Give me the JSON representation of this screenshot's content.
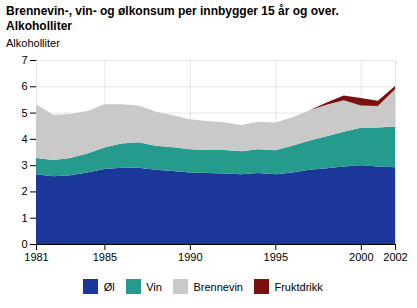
{
  "chart_data": {
    "type": "area",
    "title": "Brennevin-, vin- og ølkonsum per innbygger 15 år og over.",
    "subtitle": "Alkoholliter",
    "ylabel": "Alkoholliter",
    "x": [
      1981,
      1982,
      1983,
      1984,
      1985,
      1986,
      1987,
      1988,
      1989,
      1990,
      1991,
      1992,
      1993,
      1994,
      1995,
      1996,
      1997,
      1998,
      1999,
      2000,
      2001,
      2002
    ],
    "series": [
      {
        "name": "Øl",
        "color": "#1a3799",
        "values": [
          2.65,
          2.58,
          2.62,
          2.72,
          2.85,
          2.9,
          2.9,
          2.82,
          2.78,
          2.72,
          2.7,
          2.68,
          2.65,
          2.7,
          2.65,
          2.72,
          2.82,
          2.88,
          2.95,
          3.0,
          2.95,
          2.92
        ]
      },
      {
        "name": "Vin",
        "color": "#259b8e",
        "values": [
          0.62,
          0.62,
          0.65,
          0.72,
          0.82,
          0.92,
          0.97,
          0.92,
          0.9,
          0.88,
          0.88,
          0.9,
          0.88,
          0.9,
          0.92,
          1.02,
          1.12,
          1.22,
          1.32,
          1.42,
          1.48,
          1.55
        ]
      },
      {
        "name": "Brennevin",
        "color": "#c9c9c9",
        "values": [
          2.05,
          1.72,
          1.68,
          1.62,
          1.65,
          1.5,
          1.4,
          1.3,
          1.22,
          1.15,
          1.1,
          1.05,
          1.0,
          1.05,
          1.05,
          1.08,
          1.15,
          1.2,
          1.2,
          0.85,
          0.82,
          1.42
        ]
      },
      {
        "name": "Fruktdrikk",
        "color": "#7a1010",
        "values": [
          0.0,
          0.0,
          0.0,
          0.0,
          0.0,
          0.0,
          0.0,
          0.0,
          0.0,
          0.0,
          0.0,
          0.0,
          0.0,
          0.0,
          0.0,
          0.0,
          0.0,
          0.08,
          0.18,
          0.28,
          0.2,
          0.12
        ]
      }
    ],
    "xlim": [
      1981,
      2002
    ],
    "xticks": [
      1981,
      1985,
      1990,
      1995,
      2000,
      2002
    ],
    "ylim": [
      0,
      7
    ],
    "yticks": [
      0,
      1,
      2,
      3,
      4,
      5,
      6,
      7
    ],
    "stacked": true,
    "grid": true,
    "legend": "bottom"
  }
}
